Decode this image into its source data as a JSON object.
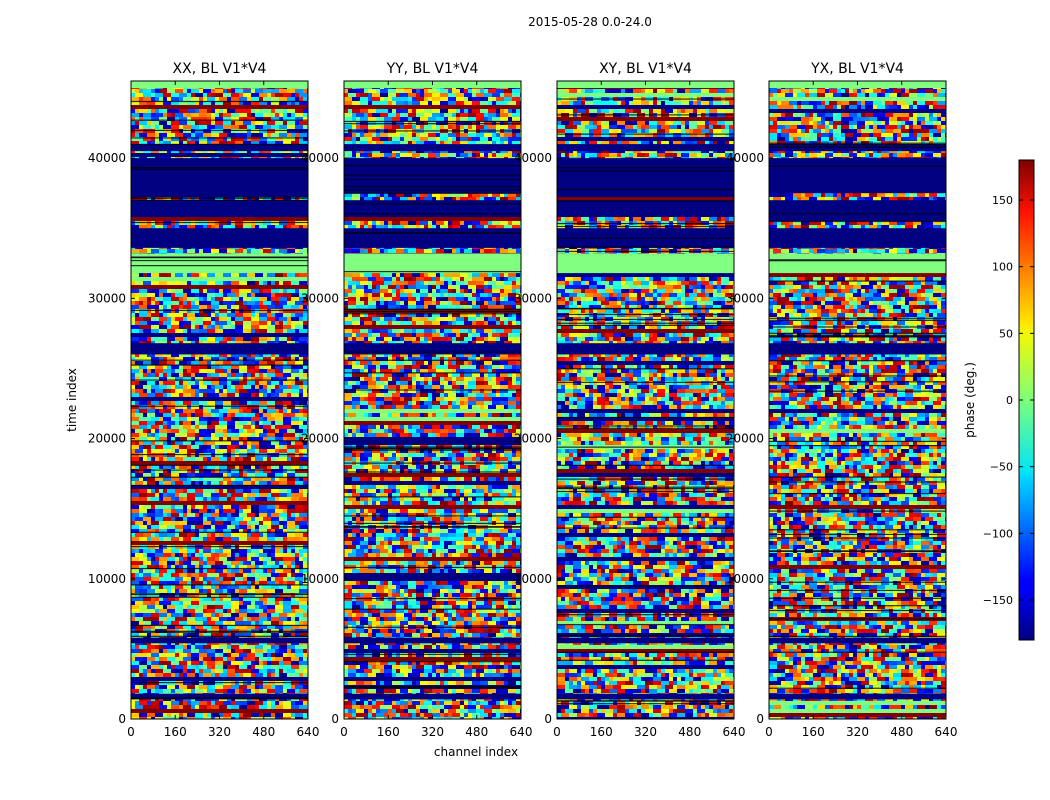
{
  "chart_data": {
    "type": "heatmap",
    "suptitle": "2015-05-28 0.0-24.0",
    "xlabel": "channel index",
    "ylabel": "time index",
    "x_range": [
      0,
      640
    ],
    "y_range": [
      0,
      45500
    ],
    "x_ticks": [
      0,
      160,
      320,
      480,
      640
    ],
    "y_ticks": [
      0,
      10000,
      20000,
      30000,
      40000
    ],
    "x_tick_labels": [
      "0",
      "160",
      "320",
      "480",
      "640"
    ],
    "y_tick_labels": [
      "0",
      "10000",
      "20000",
      "30000",
      "40000"
    ],
    "panels": [
      {
        "title": "XX, BL V1*V4"
      },
      {
        "title": "YY, BL V1*V4"
      },
      {
        "title": "XY, BL V1*V4"
      },
      {
        "title": "YX, BL V1*V4"
      }
    ],
    "colorbar": {
      "label": "phase (deg.)",
      "range": [
        -180,
        180
      ],
      "ticks": [
        -150,
        -100,
        -50,
        0,
        50,
        100,
        150
      ],
      "tick_labels": [
        "−150",
        "−100",
        "−50",
        "0",
        "50",
        "100",
        "150"
      ],
      "colormap": "jet"
    },
    "blocks": [
      {
        "y0": 31800,
        "y1": 33200,
        "phase": 0
      },
      {
        "y0": 35800,
        "y1": 37000,
        "phase": -180
      },
      {
        "y0": 33600,
        "y1": 35000,
        "phase": -180
      },
      {
        "y0": 37500,
        "y1": 40000,
        "phase": -180
      },
      {
        "y0": 40500,
        "y1": 41000,
        "phase": -180
      },
      {
        "y0": 45000,
        "y1": 45500,
        "phase": 0
      },
      {
        "y0": 26000,
        "y1": 26800,
        "phase": -180
      },
      {
        "y0": 1400,
        "y1": 1800,
        "phase": -180
      },
      {
        "y0": 5400,
        "y1": 5800,
        "phase": -180
      }
    ]
  }
}
